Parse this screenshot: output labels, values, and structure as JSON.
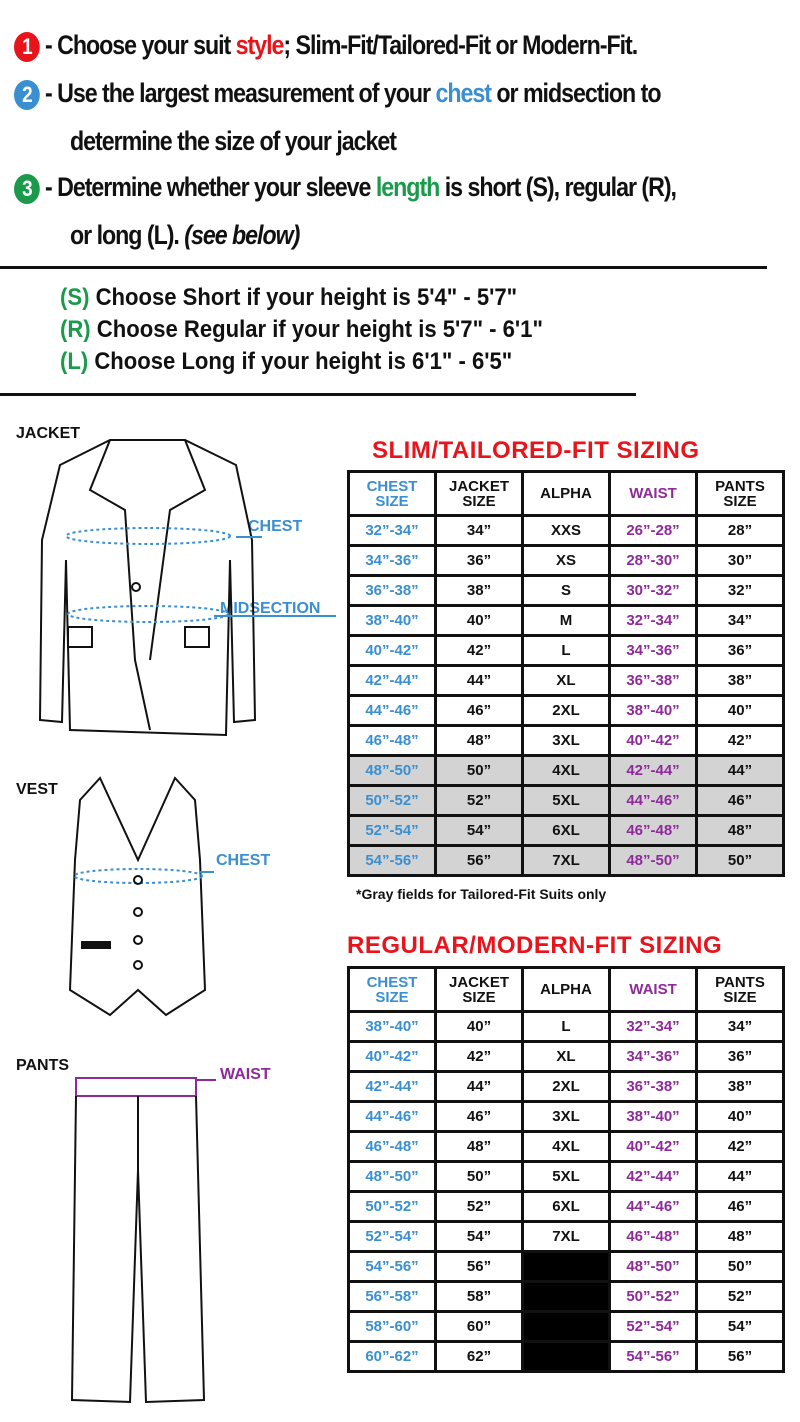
{
  "instructions": [
    {
      "number": "1",
      "color": "#e8141b",
      "before": "- Choose your suit ",
      "highlight": "style",
      "after": "; Slim-Fit/Tailored-Fit or Modern-Fit.",
      "cont": ""
    },
    {
      "number": "2",
      "color": "#3a8fd0",
      "before": "- Use the largest measurement of your ",
      "highlight": "chest",
      "after": " or midsection to",
      "cont": "determine the size of your jacket"
    },
    {
      "number": "3",
      "color": "#1a9a4a",
      "before": "- Determine whether your sleeve ",
      "highlight": "length",
      "after": " is short (S), regular (R),",
      "cont": "or long (L).",
      "cont_italic": " (see below)"
    }
  ],
  "lengths": [
    {
      "code": "(S)",
      "text": " Choose Short if your height is 5'4\" - 5'7\""
    },
    {
      "code": "(R)",
      "text": " Choose Regular if your height is  5'7\" - 6'1\""
    },
    {
      "code": "(L)",
      "text": " Choose Long if your height is  6'1\" - 6'5\""
    }
  ],
  "garments": {
    "jacket": "JACKET",
    "vest": "VEST",
    "pants": "PANTS",
    "chest": "CHEST",
    "midsection": "MIDSECTION",
    "vest_chest": "CHEST",
    "waist": "WAIST"
  },
  "headers": [
    "CHEST SIZE",
    "JACKET SIZE",
    "ALPHA",
    "WAIST",
    "PANTS SIZE"
  ],
  "slim": {
    "title": "SLIM/TAILORED-FIT SIZING",
    "note": "*Gray fields for Tailored-Fit Suits only",
    "rows": [
      [
        "32”-34”",
        "34”",
        "XXS",
        "26”-28”",
        "28”"
      ],
      [
        "34”-36”",
        "36”",
        "XS",
        "28”-30”",
        "30”"
      ],
      [
        "36”-38”",
        "38”",
        "S",
        "30”-32”",
        "32”"
      ],
      [
        "38”-40”",
        "40”",
        "M",
        "32”-34”",
        "34”"
      ],
      [
        "40”-42”",
        "42”",
        "L",
        "34”-36”",
        "36”"
      ],
      [
        "42”-44”",
        "44”",
        "XL",
        "36”-38”",
        "38”"
      ],
      [
        "44”-46”",
        "46”",
        "2XL",
        "38”-40”",
        "40”"
      ],
      [
        "46”-48”",
        "48”",
        "3XL",
        "40”-42”",
        "42”"
      ],
      [
        "48”-50”",
        "50”",
        "4XL",
        "42”-44”",
        "44”"
      ],
      [
        "50”-52”",
        "52”",
        "5XL",
        "44”-46”",
        "46”"
      ],
      [
        "52”-54”",
        "54”",
        "6XL",
        "46”-48”",
        "48”"
      ],
      [
        "54”-56”",
        "56”",
        "7XL",
        "48”-50”",
        "50”"
      ]
    ],
    "gray_from_row": 8
  },
  "regular": {
    "title": "REGULAR/MODERN-FIT SIZING",
    "rows": [
      [
        "38”-40”",
        "40”",
        "L",
        "32”-34”",
        "34”"
      ],
      [
        "40”-42”",
        "42”",
        "XL",
        "34”-36”",
        "36”"
      ],
      [
        "42”-44”",
        "44”",
        "2XL",
        "36”-38”",
        "38”"
      ],
      [
        "44”-46”",
        "46”",
        "3XL",
        "38”-40”",
        "40”"
      ],
      [
        "46”-48”",
        "48”",
        "4XL",
        "40”-42”",
        "42”"
      ],
      [
        "48”-50”",
        "50”",
        "5XL",
        "42”-44”",
        "44”"
      ],
      [
        "50”-52”",
        "52”",
        "6XL",
        "44”-46”",
        "46”"
      ],
      [
        "52”-54”",
        "54”",
        "7XL",
        "46”-48”",
        "48”"
      ],
      [
        "54”-56”",
        "56”",
        "",
        "48”-50”",
        "50”"
      ],
      [
        "56”-58”",
        "58”",
        "",
        "50”-52”",
        "52”"
      ],
      [
        "58”-60”",
        "60”",
        "",
        "52”-54”",
        "54”"
      ],
      [
        "60”-62”",
        "62”",
        "",
        "54”-56”",
        "56”"
      ]
    ]
  }
}
